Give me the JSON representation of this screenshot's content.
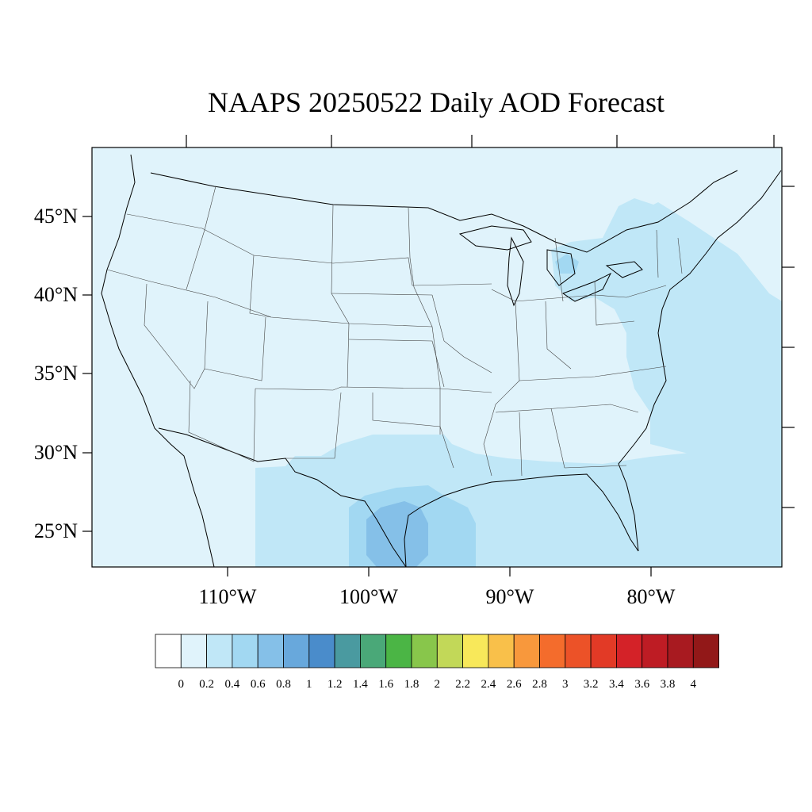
{
  "title": "NAAPS 20250522 Daily AOD Forecast",
  "lat_labels": [
    "45°N",
    "40°N",
    "35°N",
    "30°N",
    "25°N"
  ],
  "lon_labels": [
    "110°W",
    "100°W",
    "90°W",
    "80°W"
  ],
  "colorbar": {
    "labels": [
      "0",
      "0.2",
      "0.4",
      "0.6",
      "0.8",
      "1",
      "1.2",
      "1.4",
      "1.6",
      "1.8",
      "2",
      "2.2",
      "2.4",
      "2.6",
      "2.8",
      "3",
      "3.2",
      "3.4",
      "3.6",
      "3.8",
      "4"
    ],
    "colors": [
      "#ffffff",
      "#e0f3fb",
      "#c0e7f7",
      "#a2d8f2",
      "#85c0e8",
      "#68a8dc",
      "#4a8ccb",
      "#4a9aa0",
      "#4aa878",
      "#4bb545",
      "#88c64b",
      "#c2d858",
      "#f8e85a",
      "#f9c04a",
      "#f8983c",
      "#f46c2c",
      "#ec5228",
      "#e23a26",
      "#d42228",
      "#be1c24",
      "#a81a20",
      "#921818"
    ]
  },
  "map": {
    "background_color": "#e0f3fb",
    "plume_color_02_04": "#c0e7f7",
    "plume_color_04_06": "#a2d8f2",
    "plume_color_06_08": "#85c0e8",
    "coast_color": "#000000"
  }
}
